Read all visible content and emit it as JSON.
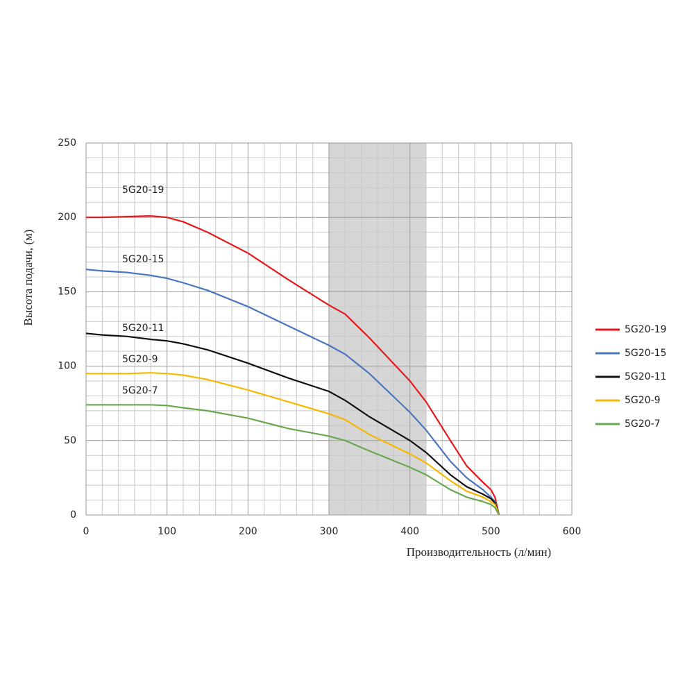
{
  "chart_data": {
    "type": "line",
    "xlabel": "Производительность (л/мин)",
    "ylabel": "Высота подачи, (м)",
    "x": [
      0,
      20,
      50,
      80,
      100,
      120,
      150,
      200,
      250,
      300,
      320,
      350,
      400,
      420,
      450,
      470,
      490,
      500,
      505,
      510
    ],
    "series": [
      {
        "name": "5G20-19",
        "color": "#e3191c",
        "values": [
          200,
          200,
          200.5,
          201,
          200,
          197,
          190,
          176,
          158,
          141,
          135,
          119,
          90,
          76,
          50,
          33,
          22,
          17,
          12,
          0
        ]
      },
      {
        "name": "5G20-15",
        "color": "#4a76bd",
        "values": [
          165,
          164,
          163,
          161,
          159,
          156,
          151,
          140,
          127,
          114,
          108,
          95,
          69,
          57,
          36,
          25,
          17,
          12,
          9,
          0
        ]
      },
      {
        "name": "5G20-11",
        "color": "#111111",
        "values": [
          122,
          121,
          120,
          118,
          117,
          115,
          111,
          102,
          92,
          83,
          77,
          66,
          50,
          42,
          27,
          19,
          14,
          11,
          8,
          0
        ]
      },
      {
        "name": "5G20-9",
        "color": "#f5b800",
        "values": [
          95,
          95,
          95,
          95.5,
          95,
          94,
          91,
          84,
          76,
          68,
          64,
          54,
          41,
          35,
          23,
          16,
          12,
          9,
          7,
          0
        ]
      },
      {
        "name": "5G20-7",
        "color": "#6aa84f",
        "values": [
          74,
          74,
          74,
          74,
          73.5,
          72,
          70,
          65,
          58,
          53,
          50,
          43,
          32,
          27,
          17,
          12,
          9,
          7,
          5,
          0
        ]
      }
    ],
    "annotations": [
      "5G20-19",
      "5G20-15",
      "5G20-11",
      "5G20-9",
      "5G20-7"
    ],
    "shaded_range": [
      300,
      420
    ],
    "xlim": [
      0,
      600
    ],
    "xticks": [
      0,
      100,
      200,
      300,
      400,
      500,
      600
    ],
    "ylim": [
      0,
      250
    ],
    "yticks": [
      0,
      50,
      100,
      150,
      200,
      250
    ],
    "xminor": [
      20,
      40,
      60,
      80,
      120,
      140,
      160,
      180,
      220,
      240,
      260,
      280,
      320,
      340,
      360,
      380,
      420,
      440,
      460,
      480,
      520,
      540,
      560,
      580
    ],
    "yminor": [
      10,
      20,
      30,
      40,
      60,
      70,
      80,
      90,
      110,
      120,
      130,
      140,
      160,
      170,
      180,
      190,
      210,
      220,
      230,
      240
    ],
    "grid": true,
    "legend": "right"
  }
}
